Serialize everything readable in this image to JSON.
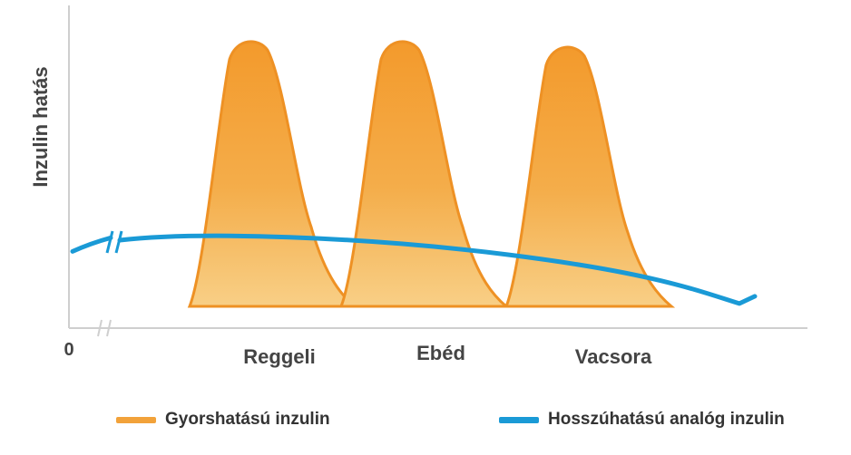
{
  "chart_data": {
    "type": "area",
    "ylabel": "Inzulin hatás",
    "x_origin_label": "0",
    "categories": [
      "Reggeli",
      "Ebéd",
      "Vacsora"
    ],
    "series": [
      {
        "name": "Gyorshatású inzulin",
        "kind": "peaks",
        "color": "#f2a23a",
        "peak_level": 0.95,
        "peaks": [
          {
            "meal": "Reggeli",
            "level": 0.95
          },
          {
            "meal": "Ebéd",
            "level": 0.95
          },
          {
            "meal": "Vacsora",
            "level": 0.93
          }
        ]
      },
      {
        "name": "Hosszúhatású analóg inzulin",
        "kind": "basal",
        "color": "#1a9ad6",
        "level_start": 0.2,
        "level_max": 0.25,
        "level_end": 0.01
      }
    ],
    "grid": false,
    "legend_position": "bottom"
  }
}
